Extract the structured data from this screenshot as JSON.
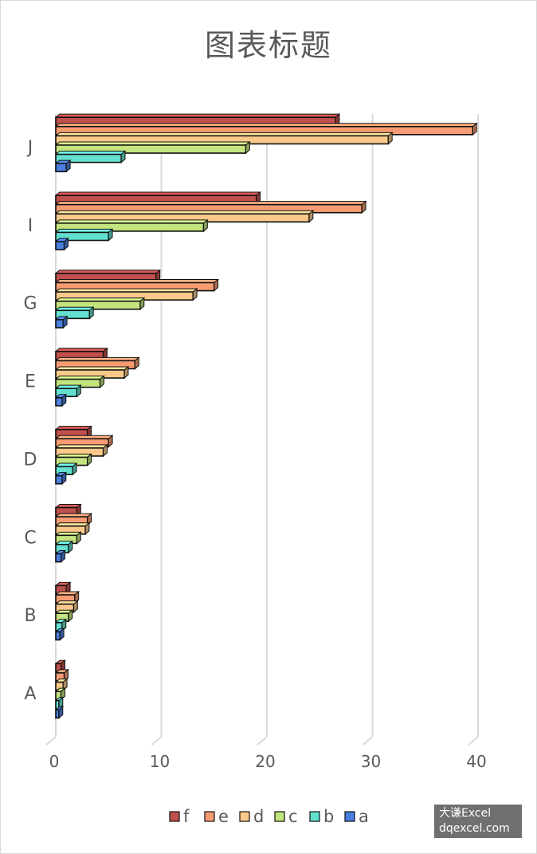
{
  "chart_data": {
    "type": "bar",
    "orientation": "horizontal",
    "style": "3d-clustered",
    "title": "图表标题",
    "categories": [
      "A",
      "B",
      "C",
      "D",
      "E",
      "G",
      "I",
      "J"
    ],
    "series": [
      {
        "name": "f",
        "color": "#C0504D",
        "values": [
          0.5,
          1,
          2,
          3,
          4.5,
          9.5,
          19,
          26.5
        ]
      },
      {
        "name": "e",
        "color": "#F79B72",
        "values": [
          0.8,
          1.8,
          3,
          5,
          7.5,
          15,
          29,
          39.5
        ]
      },
      {
        "name": "d",
        "color": "#FAC98A",
        "values": [
          0.7,
          1.7,
          2.8,
          4.5,
          6.5,
          13,
          24,
          31.5
        ]
      },
      {
        "name": "c",
        "color": "#C3E47E",
        "values": [
          0.5,
          1.2,
          2,
          3,
          4.2,
          8,
          14,
          18
        ]
      },
      {
        "name": "b",
        "color": "#64E0CE",
        "values": [
          0.3,
          0.6,
          1.2,
          1.6,
          2,
          3.2,
          5,
          6.2
        ]
      },
      {
        "name": "a",
        "color": "#4A7FE0",
        "values": [
          0.3,
          0.4,
          0.5,
          0.6,
          0.6,
          0.7,
          0.8,
          1
        ]
      }
    ],
    "xlim": [
      0,
      40
    ],
    "xticks": [
      0,
      10,
      20,
      30,
      40
    ],
    "grid": true,
    "legend_position": "bottom",
    "legend_order": [
      "f",
      "e",
      "d",
      "c",
      "b",
      "a"
    ]
  },
  "watermark": {
    "line1": "大谦Excel",
    "line2": "dqexcel.com"
  }
}
